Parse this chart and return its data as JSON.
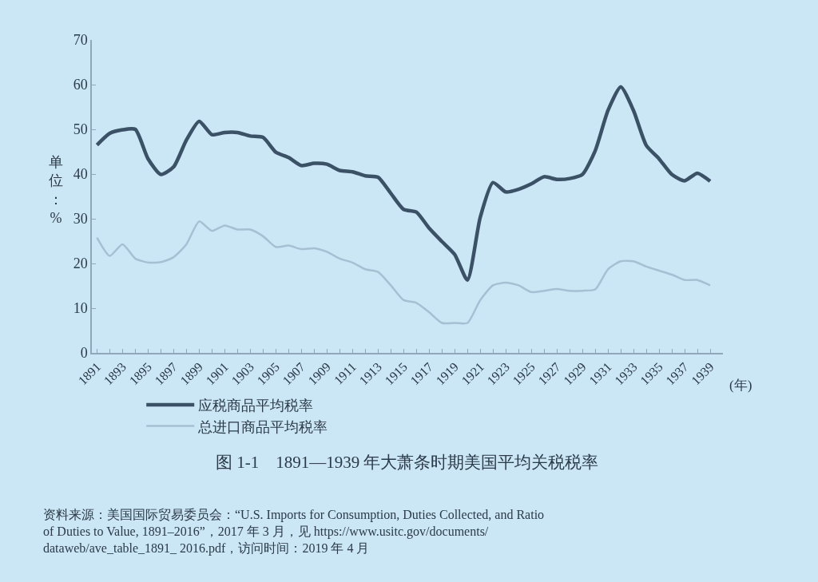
{
  "chart_data": {
    "type": "line",
    "title": "图 1-1　1891—1939 年大萧条时期美国平均关税税率",
    "xlabel": "(年)",
    "ylabel": "单位：%",
    "x": [
      1891,
      1892,
      1893,
      1894,
      1895,
      1896,
      1897,
      1898,
      1899,
      1900,
      1901,
      1902,
      1903,
      1904,
      1905,
      1906,
      1907,
      1908,
      1909,
      1910,
      1911,
      1912,
      1913,
      1914,
      1915,
      1916,
      1917,
      1918,
      1919,
      1920,
      1921,
      1922,
      1923,
      1924,
      1925,
      1926,
      1927,
      1928,
      1929,
      1930,
      1931,
      1932,
      1933,
      1934,
      1935,
      1936,
      1937,
      1938,
      1939
    ],
    "series": [
      {
        "name": "应税商品平均税率",
        "color": "#3b5166",
        "values": [
          46.5,
          49.1,
          49.9,
          50.0,
          43.4,
          39.9,
          41.6,
          47.6,
          51.8,
          48.8,
          49.3,
          49.3,
          48.5,
          48.2,
          44.9,
          43.7,
          41.9,
          42.4,
          42.2,
          40.8,
          40.5,
          39.6,
          39.3,
          35.7,
          32.1,
          31.5,
          27.9,
          24.9,
          22.0,
          16.3,
          30.3,
          38.1,
          36.0,
          36.6,
          37.8,
          39.4,
          38.8,
          39.0,
          39.9,
          45.2,
          54.2,
          59.5,
          54.2,
          46.4,
          43.4,
          39.9,
          38.5,
          40.2,
          38.4
        ]
      },
      {
        "name": "总进口商品平均税率",
        "color": "#a6c0d3",
        "values": [
          25.8,
          21.7,
          24.3,
          21.1,
          20.2,
          20.3,
          21.4,
          24.3,
          29.4,
          27.3,
          28.5,
          27.6,
          27.6,
          26.1,
          23.7,
          24.0,
          23.2,
          23.4,
          22.6,
          21.1,
          20.2,
          18.7,
          18.1,
          15.1,
          11.8,
          11.2,
          9.1,
          6.7,
          6.7,
          6.7,
          11.8,
          15.1,
          15.7,
          15.1,
          13.6,
          13.9,
          14.3,
          13.9,
          13.9,
          14.2,
          18.7,
          20.5,
          20.5,
          19.3,
          18.4,
          17.5,
          16.3,
          16.3,
          15.1
        ]
      }
    ],
    "xlim": [
      1890.6,
      1940.0
    ],
    "xticks": [
      1891,
      {
        "value": 1892,
        "label": null
      },
      1893,
      {
        "value": 1894,
        "label": null
      },
      1895,
      {
        "value": 1896,
        "label": null
      },
      1897,
      {
        "value": 1898,
        "label": null
      },
      1899,
      {
        "value": 1900,
        "label": null
      },
      1901,
      {
        "value": 1902,
        "label": null
      },
      1903,
      {
        "value": 1904,
        "label": null
      },
      1905,
      {
        "value": 1906,
        "label": null
      },
      1907,
      {
        "value": 1908,
        "label": null
      },
      1909,
      {
        "value": 1910,
        "label": null
      },
      1911,
      {
        "value": 1912,
        "label": null
      },
      1913,
      {
        "value": 1914,
        "label": null
      },
      1915,
      {
        "value": 1916,
        "label": null
      },
      1917,
      {
        "value": 1918,
        "label": null
      },
      1919,
      {
        "value": 1920,
        "label": null
      },
      1921,
      {
        "value": 1922,
        "label": null
      },
      1923,
      {
        "value": 1924,
        "label": null
      },
      1925,
      {
        "value": 1926,
        "label": null
      },
      1927,
      {
        "value": 1928,
        "label": null
      },
      1929,
      {
        "value": 1930,
        "label": null
      },
      1931,
      {
        "value": 1932,
        "label": null
      },
      1933,
      {
        "value": 1934,
        "label": null
      },
      1935,
      {
        "value": 1936,
        "label": null
      },
      1937,
      {
        "value": 1938,
        "label": null
      },
      1939
    ],
    "ylim": [
      0,
      70
    ],
    "yticks": [
      0,
      10,
      20,
      30,
      40,
      50,
      60,
      70
    ],
    "grid": false,
    "legend": "bottom",
    "marker": "none",
    "line_style": "solid",
    "annotations": [
      "资料来源：美国国际贸易委员会：“U.S. Imports for Consumption, Duties Collected, and Ratio\nof Duties to Value, 1891–2016”，2017 年 3 月，见 https://www.usitc.gov/documents/\ndataweb/ave_table_1891_ 2016.pdf，访问时间：2019 年 4 月"
    ]
  }
}
